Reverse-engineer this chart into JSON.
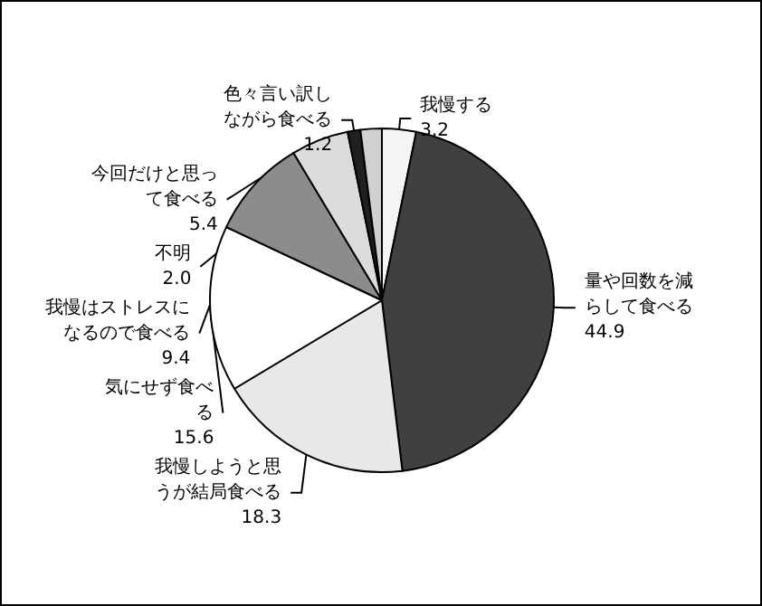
{
  "chart_data": {
    "type": "pie",
    "categories": [
      "我慢する",
      "量や回数を減らして食べる",
      "我慢しようと思うが結局食べる",
      "気にせず食べる",
      "我慢はストレスになるので食べる",
      "今回だけと思って食べる",
      "色々言い訳しながら食べる",
      "不明"
    ],
    "values": [
      3.2,
      44.9,
      18.3,
      15.6,
      9.4,
      5.4,
      1.2,
      2.0
    ],
    "colors": [
      "#f4f4f4",
      "#404040",
      "#e8e8e8",
      "#ffffff",
      "#8c8c8c",
      "#dcdcdc",
      "#202020",
      "#d0d0d0"
    ],
    "value_labels": [
      "3.2",
      "44.9",
      "18.3",
      "15.6",
      "9.4",
      "5.4",
      "1.2",
      "2.0"
    ],
    "legend": false
  }
}
